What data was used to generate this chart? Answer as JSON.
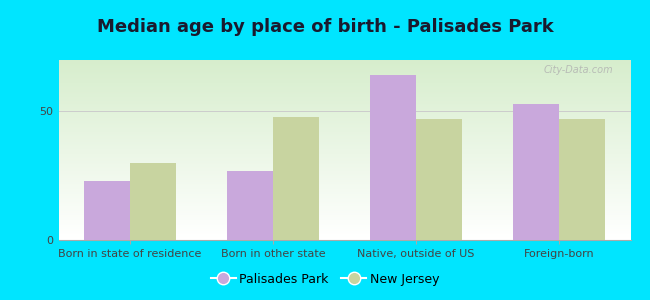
{
  "title": "Median age by place of birth - Palisades Park",
  "categories": [
    "Born in state of residence",
    "Born in other state",
    "Native, outside of US",
    "Foreign-born"
  ],
  "palisades_park": [
    23,
    27,
    64,
    53
  ],
  "new_jersey": [
    30,
    48,
    47,
    47
  ],
  "bar_color_palisades": "#c9a8dc",
  "bar_color_nj": "#c8d4a0",
  "ylim": [
    0,
    70
  ],
  "yticks": [
    0,
    50
  ],
  "background_outer": "#00e5ff",
  "grid_color": "#cccccc",
  "legend_label_palisades": "Palisades Park",
  "legend_label_nj": "New Jersey",
  "title_fontsize": 13,
  "tick_fontsize": 8,
  "legend_fontsize": 9,
  "bar_width": 0.32,
  "watermark": "City-Data.com"
}
